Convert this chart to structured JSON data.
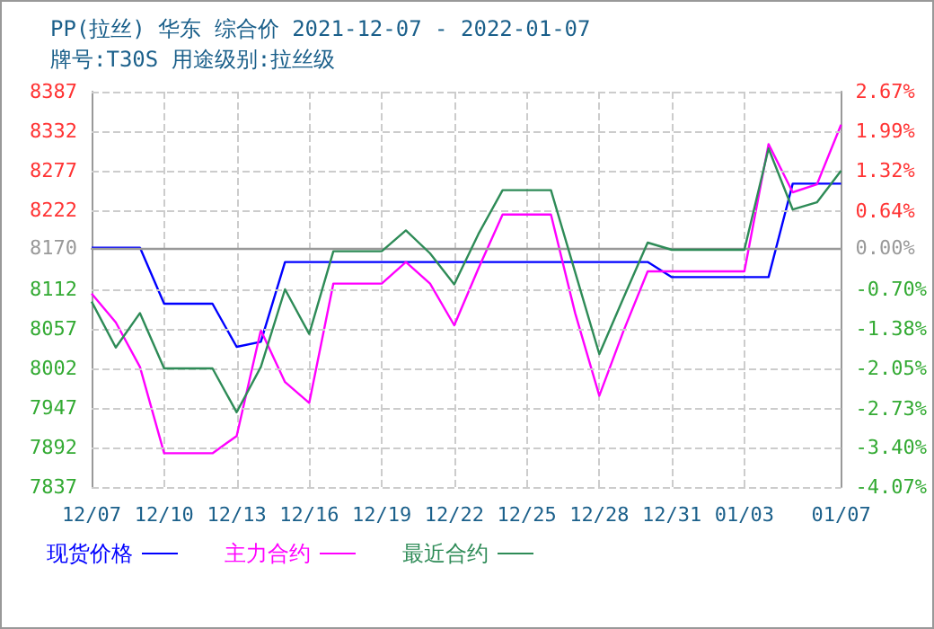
{
  "chart_data": {
    "type": "line",
    "title": "PP(拉丝) 华东 综合价 2021-12-07 - 2022-01-07",
    "subtitle": "牌号:T30S 用途级别:拉丝级",
    "categories": [
      "12/07",
      null,
      null,
      "12/10",
      null,
      null,
      "12/13",
      null,
      null,
      "12/16",
      null,
      null,
      "12/19",
      null,
      null,
      "12/22",
      null,
      null,
      "12/25",
      null,
      null,
      "12/28",
      null,
      null,
      "12/31",
      null,
      null,
      "01/03",
      null,
      null,
      null,
      "01/07"
    ],
    "series": [
      {
        "name": "现货价格",
        "color": "#0000ff",
        "values": [
          8170,
          8170,
          8170,
          8092,
          8092,
          8092,
          8032,
          8039,
          8150,
          8150,
          8150,
          8150,
          8150,
          8150,
          8150,
          8150,
          8150,
          8150,
          8150,
          8150,
          8150,
          8150,
          8150,
          8150,
          8129,
          8129,
          8129,
          8129,
          8129,
          8259,
          8259,
          8259
        ]
      },
      {
        "name": "主力合约",
        "color": "#ff00ff",
        "values": [
          8106,
          8066,
          8004,
          7884,
          7884,
          7884,
          7908,
          8055,
          7983,
          7954,
          8120,
          8120,
          8120,
          8150,
          8120,
          8062,
          8141,
          8216,
          8216,
          8216,
          8079,
          7964,
          8054,
          8137,
          8137,
          8137,
          8137,
          8137,
          8314,
          8247,
          8258,
          8341
        ]
      },
      {
        "name": "最近合约",
        "color": "#2e8b57",
        "values": [
          8095,
          8031,
          8079,
          8002,
          8002,
          8002,
          7941,
          8004,
          8112,
          8050,
          8165,
          8165,
          8165,
          8194,
          8162,
          8119,
          8189,
          8250,
          8250,
          8250,
          8136,
          8022,
          8100,
          8177,
          8167,
          8167,
          8167,
          8167,
          8308,
          8223,
          8233,
          8277
        ]
      }
    ],
    "ylim": [
      7837,
      8387
    ],
    "yticks": [
      7837,
      7892,
      7947,
      8002,
      8057,
      8112,
      8170,
      8222,
      8277,
      8332,
      8387
    ],
    "y2lim": [
      -4.07,
      2.67
    ],
    "y2ticks": [
      {
        "value": -4.07,
        "label": "-4.07%"
      },
      {
        "value": -3.4,
        "label": "-3.40%"
      },
      {
        "value": -2.73,
        "label": "-2.73%"
      },
      {
        "value": -2.05,
        "label": "-2.05%"
      },
      {
        "value": -1.38,
        "label": "-1.38%"
      },
      {
        "value": -0.7,
        "label": "-0.70%"
      },
      {
        "value": 0,
        "label": "0.00%"
      },
      {
        "value": 0.64,
        "label": "0.64%"
      },
      {
        "value": 1.32,
        "label": "1.32%"
      },
      {
        "value": 1.99,
        "label": "1.99%"
      },
      {
        "value": 2.67,
        "label": "2.67%"
      }
    ],
    "ref_lines": [
      {
        "axis": "y",
        "value": 8170,
        "color": "#999999"
      }
    ],
    "grid": true,
    "legend": "bottom",
    "marker": "none",
    "line_style": "solid"
  }
}
